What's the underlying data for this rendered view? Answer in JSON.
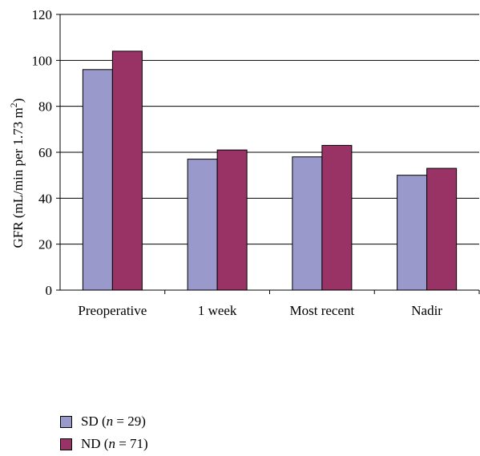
{
  "chart_data": {
    "type": "bar",
    "categories": [
      "Preoperative",
      "1 week",
      "Most recent",
      "Nadir"
    ],
    "series": [
      {
        "name": "SD (n = 29)",
        "values": [
          96,
          57,
          58,
          50
        ],
        "color": "#9999cc"
      },
      {
        "name": "ND (n = 71)",
        "values": [
          104,
          61,
          63,
          53
        ],
        "color": "#993366"
      }
    ],
    "ylabel": "GFR (mL/min per 1.73 m²)",
    "xlabel": "",
    "title": "",
    "ylim": [
      0,
      120
    ],
    "yticks": [
      0,
      20,
      40,
      60,
      80,
      100,
      120
    ],
    "grid": "horizontal",
    "legend_position": "bottom-left"
  },
  "legend": {
    "sd": {
      "prefix": "SD (",
      "n": "n",
      "suffix": " = 29)"
    },
    "nd": {
      "prefix": "ND (",
      "n": "n",
      "suffix": " = 71)"
    }
  }
}
